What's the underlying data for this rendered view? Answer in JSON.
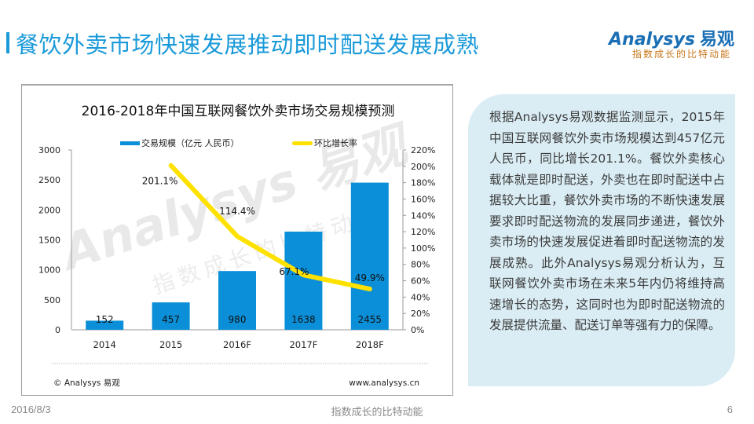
{
  "page": {
    "title": "餐饮外卖市场快速发展推动即时配送发展成熟",
    "accent_color": "#1a9ad9"
  },
  "logo": {
    "brand": "Analysys",
    "brand_cn": "易观",
    "slogan": "指数成长的比特动能"
  },
  "chart_data": {
    "type": "bar",
    "title": "2016-2018年中国互联网餐饮外卖市场交易规模预测",
    "categories": [
      "2014",
      "2015",
      "2016F",
      "2017F",
      "2018F"
    ],
    "series": [
      {
        "name": "交易规模（亿元 人民币）",
        "type": "bar",
        "axis": "left",
        "color": "#0a8fd8",
        "values": [
          152,
          457,
          980,
          1638,
          2455
        ],
        "labels": [
          "152",
          "457",
          "980",
          "1638",
          "2455"
        ]
      },
      {
        "name": "环比增长率",
        "type": "line",
        "axis": "right",
        "color": "#ffe100",
        "x_start_index": 1,
        "values": [
          201.1,
          114.4,
          67.1,
          49.9
        ],
        "labels": [
          "201.1%",
          "114.4%",
          "67.1%",
          "49.9%"
        ]
      }
    ],
    "left_axis": {
      "ylim": [
        0,
        3000
      ],
      "ticks": [
        "0",
        "500",
        "1000",
        "1500",
        "2000",
        "2500",
        "3000"
      ],
      "tick_values": [
        0,
        500,
        1000,
        1500,
        2000,
        2500,
        3000
      ]
    },
    "right_axis": {
      "ylim": [
        0,
        220
      ],
      "ticks": [
        "0%",
        "20%",
        "40%",
        "60%",
        "80%",
        "100%",
        "120%",
        "140%",
        "160%",
        "180%",
        "200%",
        "220%"
      ],
      "tick_values": [
        0,
        20,
        40,
        60,
        80,
        100,
        120,
        140,
        160,
        180,
        200,
        220
      ]
    },
    "legend": {
      "position": "top",
      "items": [
        "交易规模（亿元 人民币）",
        "环比增长率"
      ]
    },
    "grid": false,
    "source_left": "© Analysys 易观",
    "source_right": "www.analysys.cn",
    "watermark_brand": "Analysys 易观",
    "watermark_slogan": "指数成长的比特动能"
  },
  "panel": {
    "text": "根据Analysys易观数据监测显示，2015年中国互联网餐饮外卖市场规模达到457亿元人民币，同比增长201.1%。餐饮外卖核心载体就是即时配送，外卖也在即时配送中占据较大比重，餐饮外卖市场的不断快速发展要求即时配送物流的发展同步递进，餐饮外卖市场的快速发展促进着即时配送物流的发展成熟。此外Analysys易观分析认为，互联网餐饮外卖市场在未来5年内仍将维持高速增长的态势，这同时也为即时配送物流的发展提供流量、配送订单等强有力的保障。"
  },
  "footer": {
    "date": "2016/8/3",
    "slogan": "指数成长的比特动能",
    "page_number": "6"
  }
}
